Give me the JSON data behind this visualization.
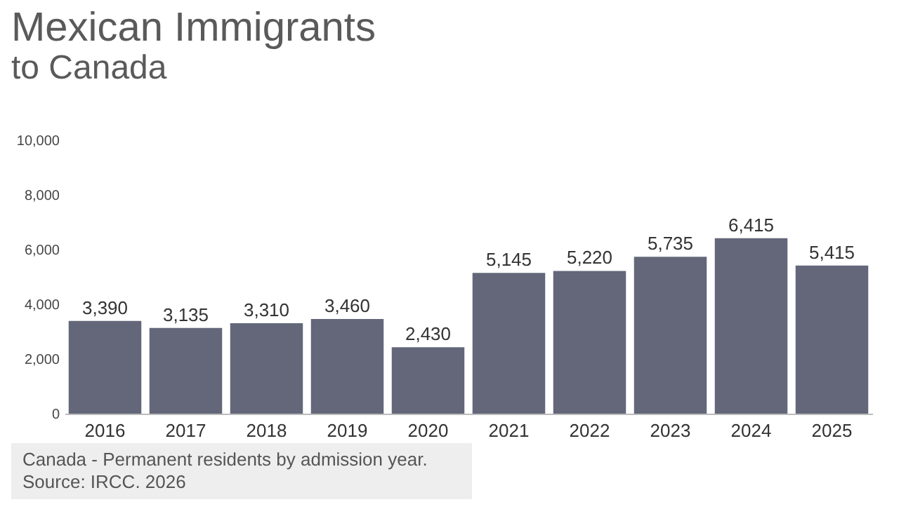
{
  "chart_data": {
    "type": "bar",
    "title": "Mexican Immigrants",
    "subtitle": "to Canada",
    "categories": [
      "2016",
      "2017",
      "2018",
      "2019",
      "2020",
      "2021",
      "2022",
      "2023",
      "2024",
      "2025"
    ],
    "values": [
      3390,
      3135,
      3310,
      3460,
      2430,
      5145,
      5220,
      5735,
      6415,
      5415
    ],
    "value_labels": [
      "3,390",
      "3,135",
      "3,310",
      "3,460",
      "2,430",
      "5,145",
      "5,220",
      "5,735",
      "6,415",
      "5,415"
    ],
    "color": "#636779",
    "ylim": [
      0,
      10000
    ],
    "yticks": [
      0,
      {
        "value": 2000,
        "label": "2,000"
      },
      {
        "value": 4000,
        "label": "4,000"
      },
      {
        "value": 6000,
        "label": "6,000"
      },
      {
        "value": 8000,
        "label": "8,000"
      },
      {
        "value": 10000,
        "label": "10,000"
      }
    ],
    "annotations": [
      "Canada - Permanent residents by admission year.",
      "Source: IRCC. 2026"
    ]
  }
}
